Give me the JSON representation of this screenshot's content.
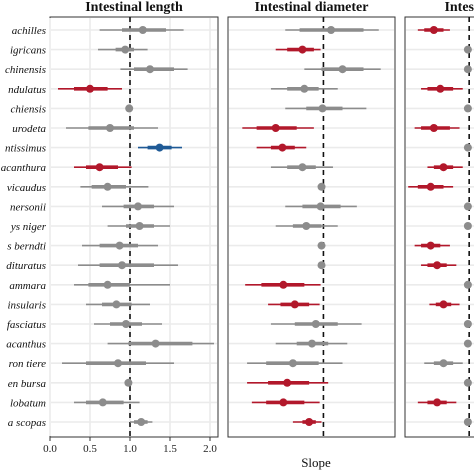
{
  "chart_data": {
    "type": "forest",
    "xlabel": "Slope",
    "reference_line": 1,
    "colors": {
      "neutral": "#8c8c8c",
      "below": "#b2182b",
      "above": "#1f5a96"
    },
    "species": [
      "achilles",
      "igricans",
      "chinensis",
      "ndulatus",
      "chiensis",
      "urodeta",
      "ntissimus",
      "acanthura",
      "vicaudus",
      "nersonii",
      "ys niger",
      "s berndti",
      "dituratus",
      "ammara",
      "insularis",
      "fasciatus",
      "acanthus",
      "ron tiere",
      "en bursa",
      "lobatum",
      "a scopas"
    ],
    "panels": [
      {
        "title": "Intestinal length",
        "xlim": [
          0,
          2.1
        ],
        "xticks": [
          0.0,
          0.5,
          1.0,
          1.5,
          2.0
        ],
        "xtick_labels": [
          "0.0",
          "0.5",
          "1.0",
          "1.5",
          "2.0"
        ],
        "estimates": [
          {
            "est": 1.16,
            "inner": [
              0.9,
              1.45
            ],
            "outer": [
              0.62,
              1.67
            ],
            "status": "neutral"
          },
          {
            "est": 0.94,
            "inner": [
              0.82,
              1.05
            ],
            "outer": [
              0.6,
              1.22
            ],
            "status": "neutral"
          },
          {
            "est": 1.25,
            "inner": [
              1.05,
              1.55
            ],
            "outer": [
              0.88,
              1.72
            ],
            "status": "neutral"
          },
          {
            "est": 0.5,
            "inner": [
              0.3,
              0.72
            ],
            "outer": [
              0.1,
              0.9
            ],
            "status": "below"
          },
          {
            "est": 0.99,
            "inner": [
              0.99,
              1.0
            ],
            "outer": [
              0.99,
              1.0
            ],
            "status": "neutral"
          },
          {
            "est": 0.75,
            "inner": [
              0.48,
              1.05
            ],
            "outer": [
              0.2,
              1.35
            ],
            "status": "neutral"
          },
          {
            "est": 1.37,
            "inner": [
              1.22,
              1.52
            ],
            "outer": [
              1.1,
              1.65
            ],
            "status": "above"
          },
          {
            "est": 0.62,
            "inner": [
              0.45,
              0.85
            ],
            "outer": [
              0.3,
              1.02
            ],
            "status": "below"
          },
          {
            "est": 0.72,
            "inner": [
              0.52,
              0.95
            ],
            "outer": [
              0.38,
              1.23
            ],
            "status": "neutral"
          },
          {
            "est": 1.1,
            "inner": [
              0.92,
              1.3
            ],
            "outer": [
              0.65,
              1.55
            ],
            "status": "neutral"
          },
          {
            "est": 1.12,
            "inner": [
              0.95,
              1.3
            ],
            "outer": [
              0.72,
              1.5
            ],
            "status": "neutral"
          },
          {
            "est": 0.87,
            "inner": [
              0.62,
              1.1
            ],
            "outer": [
              0.4,
              1.35
            ],
            "status": "neutral"
          },
          {
            "est": 0.9,
            "inner": [
              0.62,
              1.3
            ],
            "outer": [
              0.35,
              1.6
            ],
            "status": "neutral"
          },
          {
            "est": 0.72,
            "inner": [
              0.48,
              1.0
            ],
            "outer": [
              0.3,
              1.5
            ],
            "status": "neutral"
          },
          {
            "est": 0.83,
            "inner": [
              0.65,
              1.02
            ],
            "outer": [
              0.45,
              1.25
            ],
            "status": "neutral"
          },
          {
            "est": 0.95,
            "inner": [
              0.75,
              1.15
            ],
            "outer": [
              0.55,
              1.4
            ],
            "status": "neutral"
          },
          {
            "est": 1.32,
            "inner": [
              0.98,
              1.78
            ],
            "outer": [
              0.72,
              2.05
            ],
            "status": "neutral"
          },
          {
            "est": 0.85,
            "inner": [
              0.45,
              1.2
            ],
            "outer": [
              0.15,
              1.55
            ],
            "status": "neutral"
          },
          {
            "est": 0.98,
            "inner": [
              0.98,
              1.0
            ],
            "outer": [
              0.98,
              1.0
            ],
            "status": "neutral"
          },
          {
            "est": 0.66,
            "inner": [
              0.45,
              0.92
            ],
            "outer": [
              0.3,
              1.12
            ],
            "status": "neutral"
          },
          {
            "est": 1.14,
            "inner": [
              1.05,
              1.22
            ],
            "outer": [
              1.0,
              1.28
            ],
            "status": "neutral"
          }
        ]
      },
      {
        "title": "Intestinal diameter",
        "xlim": [
          0,
          1.75
        ],
        "xticks": [],
        "xtick_labels": [],
        "estimates": [
          {
            "est": 1.08,
            "inner": [
              0.75,
              1.42
            ],
            "outer": [
              0.6,
              1.58
            ],
            "status": "neutral"
          },
          {
            "est": 0.78,
            "inner": [
              0.62,
              0.9
            ],
            "outer": [
              0.5,
              0.97
            ],
            "status": "below"
          },
          {
            "est": 1.2,
            "inner": [
              0.98,
              1.42
            ],
            "outer": [
              0.8,
              1.6
            ],
            "status": "neutral"
          },
          {
            "est": 0.8,
            "inner": [
              0.62,
              0.95
            ],
            "outer": [
              0.45,
              1.15
            ],
            "status": "neutral"
          },
          {
            "est": 0.99,
            "inner": [
              0.82,
              1.2
            ],
            "outer": [
              0.6,
              1.45
            ],
            "status": "neutral"
          },
          {
            "est": 0.5,
            "inner": [
              0.3,
              0.72
            ],
            "outer": [
              0.15,
              0.9
            ],
            "status": "below"
          },
          {
            "est": 0.57,
            "inner": [
              0.45,
              0.7
            ],
            "outer": [
              0.3,
              0.82
            ],
            "status": "below"
          },
          {
            "est": 0.78,
            "inner": [
              0.62,
              0.92
            ],
            "outer": [
              0.45,
              1.1
            ],
            "status": "neutral"
          },
          {
            "est": 0.98,
            "inner": [
              0.98,
              1.0
            ],
            "outer": [
              0.98,
              1.0
            ],
            "status": "neutral"
          },
          {
            "est": 0.97,
            "inner": [
              0.78,
              1.18
            ],
            "outer": [
              0.6,
              1.35
            ],
            "status": "neutral"
          },
          {
            "est": 0.82,
            "inner": [
              0.68,
              0.98
            ],
            "outer": [
              0.5,
              1.15
            ],
            "status": "neutral"
          },
          {
            "est": 0.98,
            "inner": [
              0.98,
              1.0
            ],
            "outer": [
              0.98,
              1.0
            ],
            "status": "neutral"
          },
          {
            "est": 0.98,
            "inner": [
              0.98,
              1.0
            ],
            "outer": [
              0.98,
              1.0
            ],
            "status": "neutral"
          },
          {
            "est": 0.58,
            "inner": [
              0.35,
              0.8
            ],
            "outer": [
              0.18,
              0.97
            ],
            "status": "below"
          },
          {
            "est": 0.7,
            "inner": [
              0.55,
              0.85
            ],
            "outer": [
              0.42,
              0.96
            ],
            "status": "below"
          },
          {
            "est": 0.92,
            "inner": [
              0.7,
              1.15
            ],
            "outer": [
              0.45,
              1.4
            ],
            "status": "neutral"
          },
          {
            "est": 0.88,
            "inner": [
              0.72,
              1.05
            ],
            "outer": [
              0.5,
              1.25
            ],
            "status": "neutral"
          },
          {
            "est": 0.68,
            "inner": [
              0.4,
              0.95
            ],
            "outer": [
              0.2,
              1.2
            ],
            "status": "neutral"
          },
          {
            "est": 0.62,
            "inner": [
              0.42,
              0.85
            ],
            "outer": [
              0.2,
              1.05
            ],
            "status": "below"
          },
          {
            "est": 0.58,
            "inner": [
              0.4,
              0.8
            ],
            "outer": [
              0.25,
              0.96
            ],
            "status": "below"
          },
          {
            "est": 0.85,
            "inner": [
              0.78,
              0.92
            ],
            "outer": [
              0.68,
              0.98
            ],
            "status": "below"
          }
        ]
      },
      {
        "title": "Intesti",
        "xlim": [
          0,
          1.2
        ],
        "xticks": [],
        "xtick_labels": [],
        "estimates": [
          {
            "est": 0.45,
            "inner": [
              0.3,
              0.6
            ],
            "outer": [
              0.2,
              0.7
            ],
            "status": "below"
          },
          {
            "est": 0.98,
            "inner": [
              0.98,
              1.0
            ],
            "outer": [
              0.98,
              1.0
            ],
            "status": "neutral"
          },
          {
            "est": 0.98,
            "inner": [
              0.98,
              1.0
            ],
            "outer": [
              0.98,
              1.0
            ],
            "status": "neutral"
          },
          {
            "est": 0.55,
            "inner": [
              0.35,
              0.75
            ],
            "outer": [
              0.25,
              0.9
            ],
            "status": "below"
          },
          {
            "est": 0.98,
            "inner": [
              0.98,
              1.0
            ],
            "outer": [
              0.98,
              1.0
            ],
            "status": "neutral"
          },
          {
            "est": 0.45,
            "inner": [
              0.25,
              0.7
            ],
            "outer": [
              0.15,
              0.85
            ],
            "status": "below"
          },
          {
            "est": 0.98,
            "inner": [
              0.98,
              1.0
            ],
            "outer": [
              0.98,
              1.0
            ],
            "status": "neutral"
          },
          {
            "est": 0.6,
            "inner": [
              0.45,
              0.75
            ],
            "outer": [
              0.35,
              0.9
            ],
            "status": "below"
          },
          {
            "est": 0.4,
            "inner": [
              0.2,
              0.6
            ],
            "outer": [
              0.05,
              0.75
            ],
            "status": "below"
          },
          {
            "est": 0.98,
            "inner": [
              0.98,
              1.0
            ],
            "outer": [
              0.98,
              1.0
            ],
            "status": "neutral"
          },
          {
            "est": 0.98,
            "inner": [
              0.98,
              1.0
            ],
            "outer": [
              0.98,
              1.0
            ],
            "status": "neutral"
          },
          {
            "est": 0.4,
            "inner": [
              0.25,
              0.55
            ],
            "outer": [
              0.15,
              0.7
            ],
            "status": "below"
          },
          {
            "est": 0.5,
            "inner": [
              0.35,
              0.65
            ],
            "outer": [
              0.25,
              0.8
            ],
            "status": "below"
          },
          {
            "est": 0.98,
            "inner": [
              0.98,
              1.0
            ],
            "outer": [
              0.98,
              1.0
            ],
            "status": "neutral"
          },
          {
            "est": 0.6,
            "inner": [
              0.48,
              0.72
            ],
            "outer": [
              0.38,
              0.85
            ],
            "status": "below"
          },
          {
            "est": 0.98,
            "inner": [
              0.98,
              1.0
            ],
            "outer": [
              0.98,
              1.0
            ],
            "status": "neutral"
          },
          {
            "est": 0.98,
            "inner": [
              0.98,
              1.0
            ],
            "outer": [
              0.98,
              1.0
            ],
            "status": "neutral"
          },
          {
            "est": 0.6,
            "inner": [
              0.45,
              0.75
            ],
            "outer": [
              0.3,
              0.9
            ],
            "status": "neutral"
          },
          {
            "est": 0.98,
            "inner": [
              0.98,
              1.0
            ],
            "outer": [
              0.98,
              1.0
            ],
            "status": "neutral"
          },
          {
            "est": 0.5,
            "inner": [
              0.35,
              0.65
            ],
            "outer": [
              0.2,
              0.8
            ],
            "status": "below"
          },
          {
            "est": 0.98,
            "inner": [
              0.98,
              1.0
            ],
            "outer": [
              0.98,
              1.0
            ],
            "status": "neutral"
          }
        ]
      }
    ]
  }
}
